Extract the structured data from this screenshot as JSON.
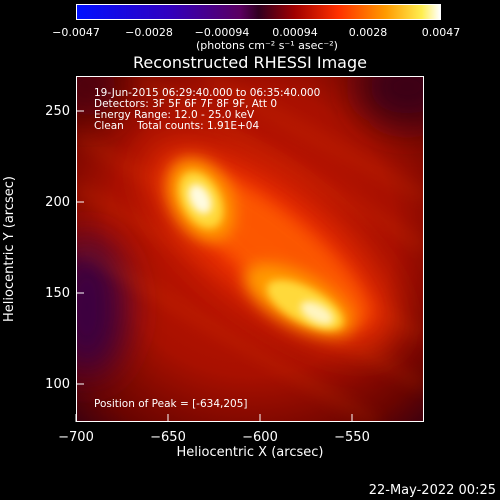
{
  "colorbar": {
    "ticks": [
      "−0.0047",
      "−0.0028",
      "−0.00094",
      "0.00094",
      "0.0028",
      "0.0047"
    ],
    "units": "(photons cm⁻² s⁻¹ asec⁻²)"
  },
  "title": "Reconstructed RHESSI Image",
  "info": {
    "time_range": "19-Jun-2015 06:29:40.000 to 06:35:40.000",
    "detectors": "Detectors: 3F 5F 6F 7F 8F 9F, Att 0",
    "energy": "Energy Range: 12.0 - 25.0 keV",
    "clean": "Clean    Total counts: 1.91E+04",
    "peak": "Position of Peak = [-634,205]"
  },
  "axes": {
    "xlabel": "Heliocentric X (arcsec)",
    "ylabel": "Heliocentric Y (arcsec)",
    "xticks": [
      "−700",
      "−650",
      "−600",
      "−550"
    ],
    "yticks": [
      "250",
      "200",
      "150",
      "100"
    ],
    "xlim": [
      -700,
      -605
    ],
    "ylim": [
      80,
      270
    ]
  },
  "timestamp": "22-May-2022 00:25"
}
